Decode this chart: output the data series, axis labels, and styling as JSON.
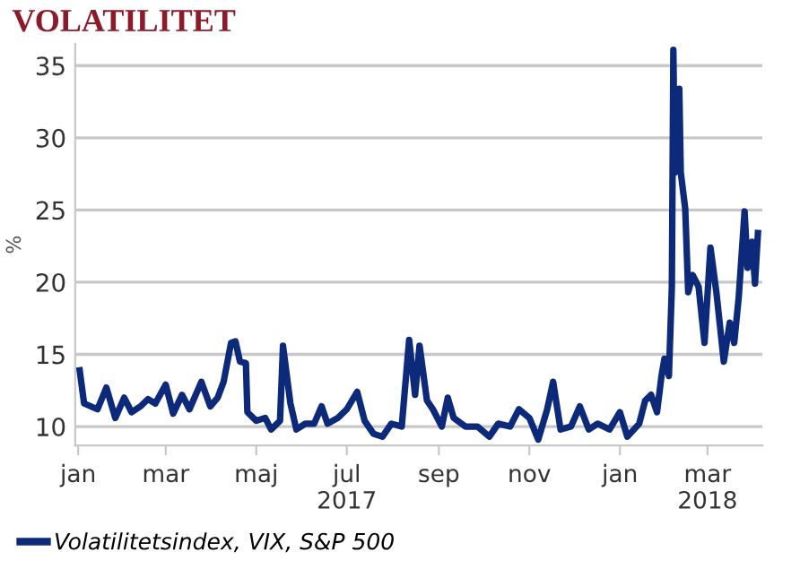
{
  "chart_data": {
    "type": "line",
    "title": "VOLATILITET",
    "ylabel": "%",
    "x": [
      "2017-01-02",
      "2017-01-05",
      "2017-01-14",
      "2017-01-20",
      "2017-01-26",
      "2017-02-01",
      "2017-02-06",
      "2017-02-12",
      "2017-02-17",
      "2017-02-22",
      "2017-03-01",
      "2017-03-06",
      "2017-03-12",
      "2017-03-17",
      "2017-03-25",
      "2017-03-31",
      "2017-04-05",
      "2017-04-09",
      "2017-04-14",
      "2017-04-17",
      "2017-04-20",
      "2017-04-24",
      "2017-04-25",
      "2017-05-01",
      "2017-05-07",
      "2017-05-11",
      "2017-05-17",
      "2017-05-19",
      "2017-05-24",
      "2017-05-28",
      "2017-06-03",
      "2017-06-09",
      "2017-06-14",
      "2017-06-18",
      "2017-06-25",
      "2017-07-01",
      "2017-07-08",
      "2017-07-13",
      "2017-07-19",
      "2017-07-25",
      "2017-07-31",
      "2017-08-07",
      "2017-08-12",
      "2017-08-16",
      "2017-08-19",
      "2017-08-24",
      "2017-08-28",
      "2017-09-03",
      "2017-09-07",
      "2017-09-11",
      "2017-09-19",
      "2017-09-27",
      "2017-10-05",
      "2017-10-11",
      "2017-10-19",
      "2017-10-25",
      "2017-11-01",
      "2017-11-07",
      "2017-11-13",
      "2017-11-17",
      "2017-11-22",
      "2017-11-29",
      "2017-12-05",
      "2017-12-11",
      "2017-12-17",
      "2017-12-25",
      "2018-01-01",
      "2018-01-06",
      "2018-01-14",
      "2018-01-18",
      "2018-01-22",
      "2018-01-26",
      "2018-01-29",
      "2018-01-31",
      "2018-02-03",
      "2018-02-05",
      "2018-02-06",
      "2018-02-07",
      "2018-02-10",
      "2018-02-11",
      "2018-02-14",
      "2018-02-16",
      "2018-02-19",
      "2018-02-23",
      "2018-02-27",
      "2018-03-03",
      "2018-03-07",
      "2018-03-12",
      "2018-03-16",
      "2018-03-19",
      "2018-03-22",
      "2018-03-26",
      "2018-03-28",
      "2018-03-31",
      "2018-04-02",
      "2018-04-04"
    ],
    "series": [
      {
        "name": "Volatilitetsindex, VIX, S&P 500",
        "color": "#0d2a7a",
        "values": [
          13.9,
          11.6,
          11.2,
          12.7,
          10.6,
          12.0,
          11.0,
          11.4,
          11.9,
          11.6,
          12.9,
          10.9,
          12.2,
          11.2,
          13.1,
          11.4,
          12.0,
          13.1,
          15.8,
          15.9,
          14.5,
          14.4,
          11.0,
          10.4,
          10.6,
          9.8,
          10.4,
          15.6,
          11.6,
          9.8,
          10.2,
          10.2,
          11.4,
          10.2,
          10.6,
          11.2,
          12.4,
          10.4,
          9.5,
          9.3,
          10.2,
          10.0,
          16.0,
          12.2,
          15.6,
          11.8,
          11.2,
          10.0,
          12.0,
          10.6,
          10.0,
          10.0,
          9.3,
          10.2,
          10.0,
          11.2,
          10.6,
          9.1,
          11.2,
          13.1,
          9.8,
          10.0,
          11.4,
          9.8,
          10.2,
          9.8,
          11.0,
          9.3,
          10.2,
          11.8,
          12.2,
          11.0,
          13.5,
          14.7,
          13.5,
          19.7,
          36.1,
          27.6,
          33.4,
          27.6,
          25.1,
          19.3,
          20.5,
          19.7,
          15.8,
          22.4,
          19.3,
          14.5,
          17.2,
          15.8,
          18.9,
          24.9,
          21.0,
          22.8,
          19.9,
          23.4
        ]
      }
    ],
    "xlim": [
      "2016-12-30",
      "2018-04-07"
    ],
    "xticks": [
      {
        "value": "2017-01-01",
        "label": "jan"
      },
      {
        "value": "2017-03-01",
        "label": "mar"
      },
      {
        "value": "2017-05-01",
        "label": "maj"
      },
      {
        "value": "2017-07-01",
        "label": "jul\n2017"
      },
      {
        "value": "2017-09-01",
        "label": "sep"
      },
      {
        "value": "2017-11-01",
        "label": "nov"
      },
      {
        "value": "2018-01-01",
        "label": "jan"
      },
      {
        "value": "2018-03-01",
        "label": "mar\n2018"
      }
    ],
    "ylim": [
      8.7,
      36.5
    ],
    "yticks": [
      10,
      15,
      20,
      25,
      30,
      35
    ],
    "grid": "y",
    "legend": "bottom left",
    "line_style": "solid",
    "marker": "none"
  }
}
